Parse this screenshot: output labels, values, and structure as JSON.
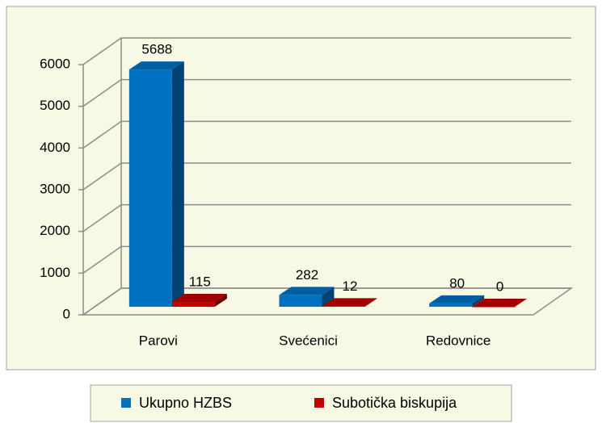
{
  "chart_data": {
    "type": "bar3d",
    "categories": [
      "Parovi",
      "Svećenici",
      "Redovnice"
    ],
    "series": [
      {
        "name": "Ukupno HZBS",
        "color": "#0070c0",
        "values": [
          5688,
          282,
          80
        ]
      },
      {
        "name": "Subotička biskupija",
        "color": "#c00000",
        "values": [
          115,
          12,
          0
        ]
      }
    ],
    "ylim": [
      0,
      6000
    ],
    "yticks": [
      0,
      1000,
      2000,
      3000,
      4000,
      5000,
      6000
    ],
    "grid": true,
    "legend": "bottom"
  }
}
